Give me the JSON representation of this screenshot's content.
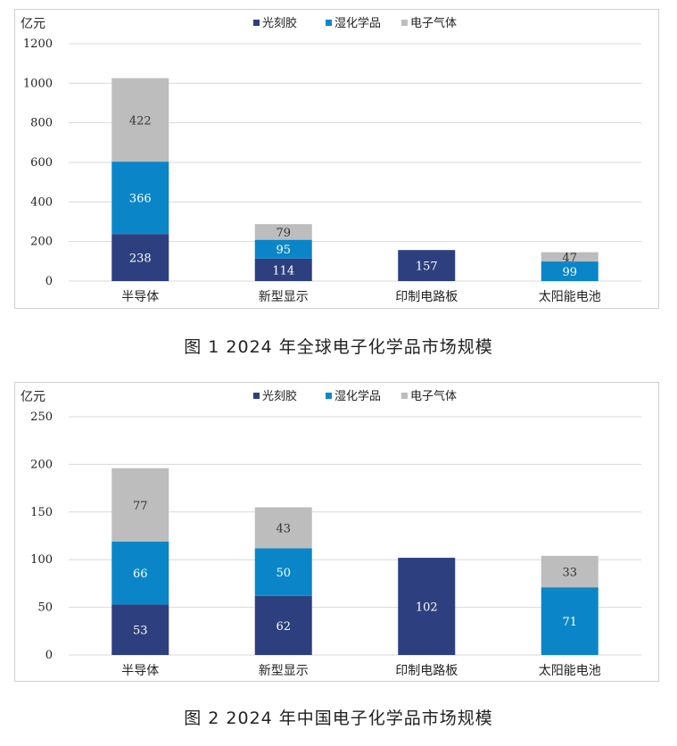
{
  "colors": {
    "photoresist": "#2e3f7f",
    "wet_chemicals": "#0a86c8",
    "gases": "#bdbdbd",
    "grid": "#d9d9d9"
  },
  "chart_data": [
    {
      "type": "bar",
      "stacked": true,
      "unit_label": "亿元",
      "categories": [
        "半导体",
        "新型显示",
        "印制电路板",
        "太阳能电池"
      ],
      "series": [
        {
          "name": "光刻胶",
          "values": [
            238,
            114,
            157,
            0
          ]
        },
        {
          "name": "湿化学品",
          "values": [
            366,
            95,
            0,
            99
          ]
        },
        {
          "name": "电子气体",
          "values": [
            422,
            79,
            0,
            47
          ]
        }
      ],
      "ylim": [
        0,
        1200
      ],
      "yticks": [
        0,
        200,
        400,
        600,
        800,
        1000,
        1200
      ],
      "grid": true,
      "legend": "top"
    },
    {
      "type": "bar",
      "stacked": true,
      "unit_label": "亿元",
      "categories": [
        "半导体",
        "新型显示",
        "印制电路板",
        "太阳能电池"
      ],
      "series": [
        {
          "name": "光刻胶",
          "values": [
            53,
            62,
            102,
            0
          ]
        },
        {
          "name": "湿化学品",
          "values": [
            66,
            50,
            0,
            71
          ]
        },
        {
          "name": "电子气体",
          "values": [
            77,
            43,
            0,
            33
          ]
        }
      ],
      "ylim": [
        0,
        250
      ],
      "yticks": [
        0,
        50,
        100,
        150,
        200,
        250
      ],
      "grid": true,
      "legend": "top"
    }
  ],
  "captions": [
    "图 1  2024 年全球电子化学品市场规模",
    "图 2  2024 年中国电子化学品市场规模"
  ]
}
